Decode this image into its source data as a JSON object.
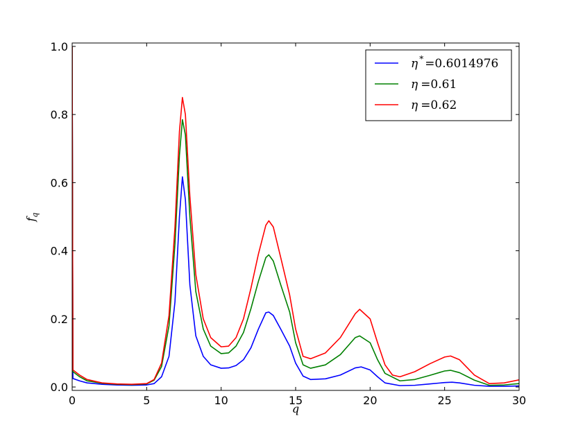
{
  "chart_data": {
    "type": "line",
    "xlabel": "q",
    "ylabel_main": "f",
    "ylabel_sub": "q",
    "xlim": [
      0,
      30
    ],
    "ylim": [
      -0.01,
      1.01
    ],
    "xticks": [
      0,
      5,
      10,
      15,
      20,
      25,
      30
    ],
    "xtick_labels": [
      "0",
      "5",
      "10",
      "15",
      "20",
      "25",
      "30"
    ],
    "yticks": [
      0.0,
      0.2,
      0.4,
      0.6,
      0.8,
      1.0
    ],
    "ytick_labels": [
      "0.0",
      "0.2",
      "0.4",
      "0.6",
      "0.8",
      "1.0"
    ],
    "grid": false,
    "legend_position": "top-right",
    "series": [
      {
        "legend_symbol": "η",
        "legend_sup": "*",
        "legend_value": "=0.6014976",
        "color": "#0000ff",
        "points": [
          [
            0,
            1.0
          ],
          [
            0.05,
            0.025
          ],
          [
            0.5,
            0.018
          ],
          [
            1,
            0.012
          ],
          [
            2,
            0.008
          ],
          [
            3,
            0.006
          ],
          [
            4,
            0.005
          ],
          [
            5,
            0.006
          ],
          [
            5.5,
            0.01
          ],
          [
            6,
            0.03
          ],
          [
            6.5,
            0.09
          ],
          [
            6.9,
            0.25
          ],
          [
            7.2,
            0.5
          ],
          [
            7.4,
            0.617
          ],
          [
            7.6,
            0.55
          ],
          [
            7.9,
            0.3
          ],
          [
            8.3,
            0.15
          ],
          [
            8.8,
            0.09
          ],
          [
            9.3,
            0.065
          ],
          [
            10,
            0.055
          ],
          [
            10.5,
            0.056
          ],
          [
            11,
            0.063
          ],
          [
            11.5,
            0.08
          ],
          [
            12,
            0.115
          ],
          [
            12.5,
            0.17
          ],
          [
            13,
            0.218
          ],
          [
            13.2,
            0.22
          ],
          [
            13.5,
            0.21
          ],
          [
            14,
            0.17
          ],
          [
            14.6,
            0.12
          ],
          [
            15,
            0.07
          ],
          [
            15.5,
            0.032
          ],
          [
            16,
            0.022
          ],
          [
            17,
            0.024
          ],
          [
            18,
            0.035
          ],
          [
            19,
            0.056
          ],
          [
            19.4,
            0.059
          ],
          [
            20,
            0.05
          ],
          [
            20.5,
            0.03
          ],
          [
            21,
            0.012
          ],
          [
            22,
            0.004
          ],
          [
            23,
            0.005
          ],
          [
            24,
            0.009
          ],
          [
            25,
            0.013
          ],
          [
            25.5,
            0.014
          ],
          [
            26,
            0.012
          ],
          [
            27,
            0.005
          ],
          [
            28,
            0.002
          ],
          [
            29,
            0.002
          ],
          [
            30,
            0.003
          ]
        ]
      },
      {
        "legend_symbol": "η",
        "legend_sup": "",
        "legend_value": "=0.61",
        "color": "#008000",
        "points": [
          [
            0,
            1.0
          ],
          [
            0.05,
            0.045
          ],
          [
            0.5,
            0.03
          ],
          [
            1,
            0.018
          ],
          [
            2,
            0.011
          ],
          [
            3,
            0.008
          ],
          [
            4,
            0.007
          ],
          [
            5,
            0.009
          ],
          [
            5.5,
            0.02
          ],
          [
            6,
            0.06
          ],
          [
            6.5,
            0.18
          ],
          [
            6.9,
            0.42
          ],
          [
            7.2,
            0.68
          ],
          [
            7.4,
            0.785
          ],
          [
            7.6,
            0.74
          ],
          [
            7.9,
            0.5
          ],
          [
            8.3,
            0.28
          ],
          [
            8.8,
            0.17
          ],
          [
            9.3,
            0.12
          ],
          [
            10,
            0.098
          ],
          [
            10.5,
            0.1
          ],
          [
            11,
            0.12
          ],
          [
            11.5,
            0.16
          ],
          [
            12,
            0.23
          ],
          [
            12.5,
            0.31
          ],
          [
            13,
            0.38
          ],
          [
            13.2,
            0.388
          ],
          [
            13.5,
            0.37
          ],
          [
            14,
            0.3
          ],
          [
            14.6,
            0.22
          ],
          [
            15,
            0.13
          ],
          [
            15.5,
            0.065
          ],
          [
            16,
            0.055
          ],
          [
            17,
            0.065
          ],
          [
            18,
            0.095
          ],
          [
            19,
            0.145
          ],
          [
            19.3,
            0.15
          ],
          [
            20,
            0.13
          ],
          [
            20.5,
            0.08
          ],
          [
            21,
            0.04
          ],
          [
            22,
            0.018
          ],
          [
            23,
            0.022
          ],
          [
            24,
            0.034
          ],
          [
            25,
            0.047
          ],
          [
            25.4,
            0.049
          ],
          [
            26,
            0.042
          ],
          [
            27,
            0.02
          ],
          [
            28,
            0.005
          ],
          [
            29,
            0.006
          ],
          [
            30,
            0.01
          ]
        ]
      },
      {
        "legend_symbol": "η",
        "legend_sup": "",
        "legend_value": "=0.62",
        "color": "#ff0000",
        "points": [
          [
            0,
            1.0
          ],
          [
            0.05,
            0.05
          ],
          [
            0.5,
            0.035
          ],
          [
            1,
            0.022
          ],
          [
            2,
            0.012
          ],
          [
            3,
            0.009
          ],
          [
            4,
            0.008
          ],
          [
            5,
            0.01
          ],
          [
            5.5,
            0.022
          ],
          [
            6,
            0.07
          ],
          [
            6.5,
            0.21
          ],
          [
            6.9,
            0.47
          ],
          [
            7.2,
            0.75
          ],
          [
            7.4,
            0.85
          ],
          [
            7.6,
            0.8
          ],
          [
            7.9,
            0.56
          ],
          [
            8.3,
            0.33
          ],
          [
            8.8,
            0.2
          ],
          [
            9.3,
            0.145
          ],
          [
            10,
            0.118
          ],
          [
            10.5,
            0.12
          ],
          [
            11,
            0.145
          ],
          [
            11.5,
            0.2
          ],
          [
            12,
            0.29
          ],
          [
            12.5,
            0.39
          ],
          [
            13,
            0.475
          ],
          [
            13.2,
            0.488
          ],
          [
            13.5,
            0.47
          ],
          [
            14,
            0.38
          ],
          [
            14.6,
            0.27
          ],
          [
            15,
            0.17
          ],
          [
            15.5,
            0.09
          ],
          [
            16,
            0.083
          ],
          [
            17,
            0.1
          ],
          [
            18,
            0.145
          ],
          [
            19,
            0.215
          ],
          [
            19.3,
            0.228
          ],
          [
            20,
            0.2
          ],
          [
            20.5,
            0.13
          ],
          [
            21,
            0.065
          ],
          [
            21.5,
            0.035
          ],
          [
            22,
            0.03
          ],
          [
            23,
            0.045
          ],
          [
            24,
            0.068
          ],
          [
            25,
            0.088
          ],
          [
            25.4,
            0.091
          ],
          [
            26,
            0.08
          ],
          [
            27,
            0.035
          ],
          [
            28,
            0.01
          ],
          [
            29,
            0.012
          ],
          [
            30,
            0.021
          ]
        ]
      }
    ]
  }
}
